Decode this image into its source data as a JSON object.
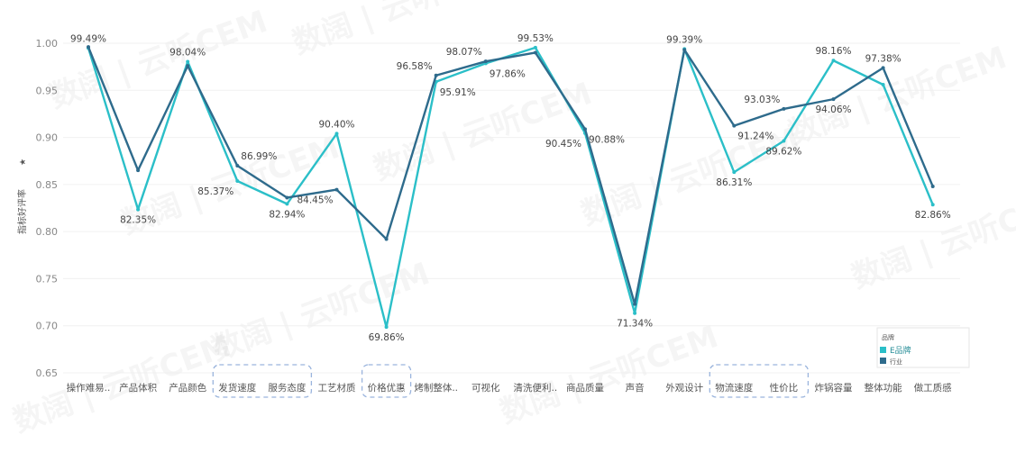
{
  "chart_data": {
    "type": "line",
    "ylabel": "指标好评率",
    "ylim": [
      0.65,
      1.0
    ],
    "yticks": [
      "0.65",
      "0.70",
      "0.75",
      "0.80",
      "0.85",
      "0.90",
      "0.95",
      "1.00"
    ],
    "grid": true,
    "categories": [
      "操作难易..",
      "产品体积",
      "产品颜色",
      "发货速度",
      "服务态度",
      "工艺材质",
      "价格优惠",
      "烤制整体..",
      "可视化",
      "清洗便利..",
      "商品质量",
      "声音",
      "外观设计",
      "物流速度",
      "性价比",
      "炸锅容量",
      "整体功能",
      "做工质感"
    ],
    "highlighted_groups": [
      [
        3,
        4
      ],
      [
        6
      ],
      [
        13,
        14
      ]
    ],
    "series": [
      {
        "name": "E品牌",
        "color": "#2bbfc8",
        "values": [
          0.9949,
          0.8235,
          0.9804,
          0.8537,
          0.8294,
          0.904,
          0.6986,
          0.9591,
          0.9786,
          0.9953,
          0.9045,
          0.7134,
          0.9939,
          0.8631,
          0.8962,
          0.9816,
          0.956,
          0.8286
        ]
      },
      {
        "name": "行业",
        "color": "#2e6b8c",
        "values": [
          0.996,
          0.865,
          0.976,
          0.8699,
          0.836,
          0.8445,
          0.792,
          0.9658,
          0.9807,
          0.99,
          0.9088,
          0.723,
          0.993,
          0.9124,
          0.9303,
          0.9406,
          0.9738,
          0.848
        ]
      }
    ],
    "data_labels": [
      {
        "s": 0,
        "i": 0,
        "text": "99.49%",
        "pos": "above"
      },
      {
        "s": 0,
        "i": 1,
        "text": "82.35%",
        "pos": "below"
      },
      {
        "s": 0,
        "i": 2,
        "text": "98.04%",
        "pos": "above"
      },
      {
        "s": 0,
        "i": 3,
        "text": "85.37%",
        "pos": "below-left"
      },
      {
        "s": 1,
        "i": 3,
        "text": "86.99%",
        "pos": "above-right"
      },
      {
        "s": 0,
        "i": 4,
        "text": "82.94%",
        "pos": "below"
      },
      {
        "s": 0,
        "i": 5,
        "text": "90.40%",
        "pos": "above"
      },
      {
        "s": 1,
        "i": 5,
        "text": "84.45%",
        "pos": "below-left"
      },
      {
        "s": 0,
        "i": 6,
        "text": "69.86%",
        "pos": "below"
      },
      {
        "s": 1,
        "i": 7,
        "text": "96.58%",
        "pos": "above-left"
      },
      {
        "s": 0,
        "i": 7,
        "text": "95.91%",
        "pos": "below-right"
      },
      {
        "s": 1,
        "i": 8,
        "text": "98.07%",
        "pos": "above-left"
      },
      {
        "s": 0,
        "i": 8,
        "text": "97.86%",
        "pos": "below-right"
      },
      {
        "s": 0,
        "i": 9,
        "text": "99.53%",
        "pos": "above"
      },
      {
        "s": 0,
        "i": 10,
        "text": "90.45%",
        "pos": "below-left"
      },
      {
        "s": 1,
        "i": 10,
        "text": "90.88%",
        "pos": "below-right"
      },
      {
        "s": 0,
        "i": 11,
        "text": "71.34%",
        "pos": "below"
      },
      {
        "s": 0,
        "i": 12,
        "text": "99.39%",
        "pos": "above"
      },
      {
        "s": 0,
        "i": 13,
        "text": "86.31%",
        "pos": "below"
      },
      {
        "s": 1,
        "i": 13,
        "text": "91.24%",
        "pos": "below-right"
      },
      {
        "s": 1,
        "i": 14,
        "text": "93.03%",
        "pos": "above-left"
      },
      {
        "s": 0,
        "i": 14,
        "text": "89.62%",
        "pos": "below"
      },
      {
        "s": 0,
        "i": 15,
        "text": "98.16%",
        "pos": "above"
      },
      {
        "s": 1,
        "i": 15,
        "text": "94.06%",
        "pos": "below"
      },
      {
        "s": 1,
        "i": 16,
        "text": "97.38%",
        "pos": "above"
      },
      {
        "s": 0,
        "i": 17,
        "text": "82.86%",
        "pos": "below"
      }
    ],
    "legend": {
      "title": "品牌",
      "placement": "bottom-right"
    },
    "watermark": "数阔 | 云听CEM"
  }
}
